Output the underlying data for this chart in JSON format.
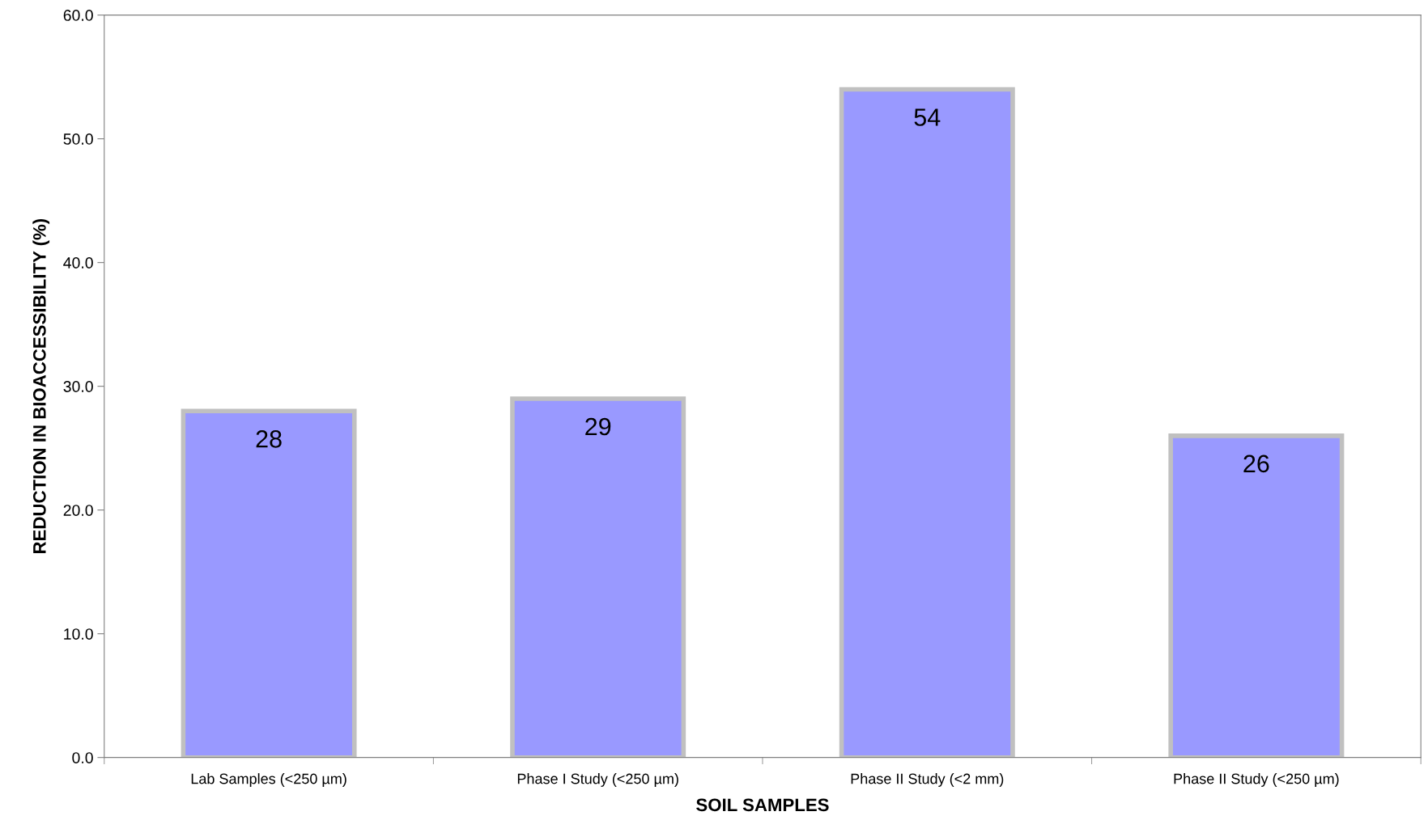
{
  "chart_data": {
    "type": "bar",
    "xlabel": "SOIL SAMPLES",
    "ylabel": "REDUCTION IN BIOACCESSIBILITY (%)",
    "categories": [
      "Lab Samples (<250 µm)",
      "Phase I Study (<250 µm)",
      "Phase II Study (<2 mm)",
      "Phase II Study (<250 µm)"
    ],
    "values": [
      28,
      29,
      54,
      26
    ],
    "color": "#9999ff",
    "data_labels": true,
    "ylim": [
      0,
      60
    ],
    "yticks": [
      {
        "value": 0,
        "label": "0.0"
      },
      {
        "value": 10,
        "label": "10.0"
      },
      {
        "value": 20,
        "label": "20.0"
      },
      {
        "value": 30,
        "label": "30.0"
      },
      {
        "value": 40,
        "label": "40.0"
      },
      {
        "value": 50,
        "label": "50.0"
      },
      {
        "value": 60,
        "label": "60.0"
      }
    ],
    "grid": false,
    "legend": false
  }
}
